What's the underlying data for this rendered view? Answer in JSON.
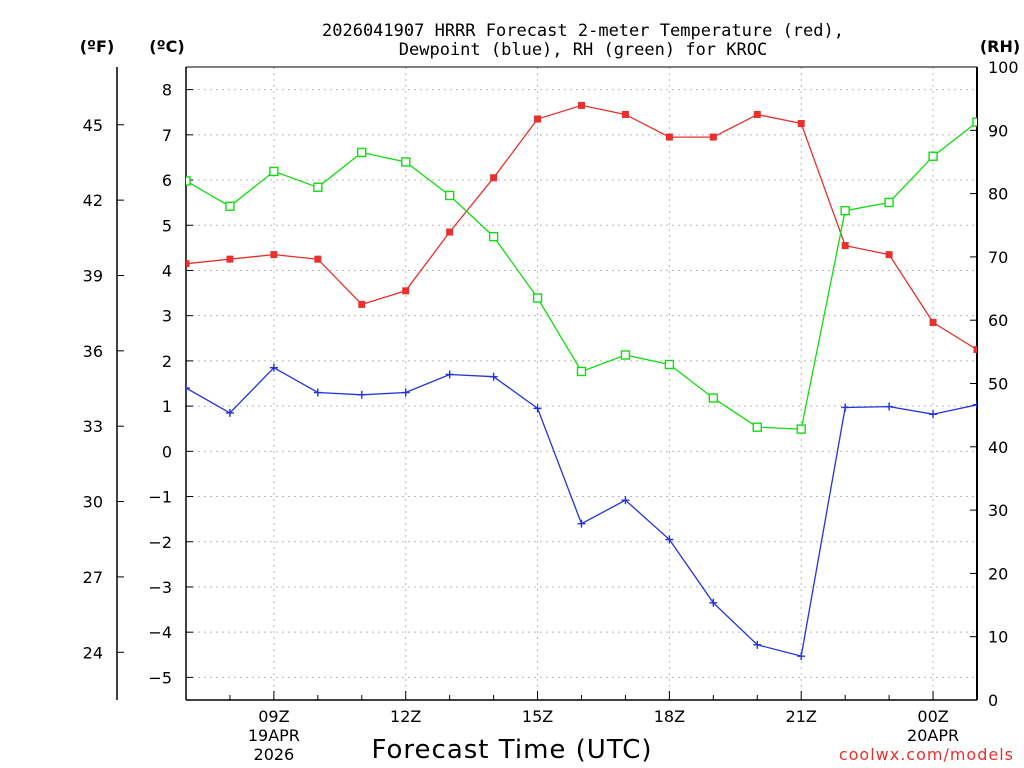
{
  "title_line1": "2026041907 HRRR Forecast 2-meter Temperature (red),",
  "title_line2": "Dewpoint (blue), RH (green) for KROC",
  "units": {
    "fahrenheit": "(ºF)",
    "celsius": "(ºC)",
    "rh": "(RH)"
  },
  "xaxis_title": "Forecast Time (UTC)",
  "credit": "coolwx.com/models",
  "colors": {
    "temperature": "#e8302c",
    "dewpoint": "#2233dd",
    "rh": "#11dd11"
  },
  "chart_data": {
    "type": "line",
    "title": "2026041907 HRRR Forecast 2-meter Temperature (red), Dewpoint (blue), RH (green) for KROC",
    "xlabel": "Forecast Time (UTC)",
    "x_hours": [
      7,
      8,
      9,
      10,
      11,
      12,
      13,
      14,
      15,
      16,
      17,
      18,
      19,
      20,
      21,
      22,
      23,
      24,
      25
    ],
    "xlim": [
      7,
      25
    ],
    "x_tick_hours": [
      9,
      12,
      15,
      18,
      21,
      24
    ],
    "x_tick_labels": [
      [
        "09Z",
        "19APR",
        "2026"
      ],
      [
        "12Z"
      ],
      [
        "15Z"
      ],
      [
        "18Z"
      ],
      [
        "21Z"
      ],
      [
        "00Z",
        "20APR"
      ]
    ],
    "y_celsius_lim": [
      -5.5,
      8.5
    ],
    "y_celsius_ticks": [
      8,
      7,
      6,
      5,
      4,
      3,
      2,
      1,
      0,
      -1,
      -2,
      -3,
      -4,
      -5
    ],
    "y_fahrenheit_ticks": [
      45,
      42,
      39,
      36,
      33,
      30,
      27,
      24
    ],
    "y_rh_lim": [
      0,
      100
    ],
    "y_rh_ticks": [
      100,
      90,
      80,
      70,
      60,
      50,
      40,
      30,
      20,
      10,
      0
    ],
    "series": [
      {
        "name": "Temperature",
        "axis": "celsius",
        "marker": "filled-square",
        "values": [
          4.15,
          4.25,
          4.35,
          4.25,
          3.25,
          3.55,
          4.85,
          6.05,
          7.35,
          7.65,
          7.45,
          6.95,
          6.95,
          7.45,
          7.25,
          4.55,
          4.35,
          2.85,
          2.25
        ]
      },
      {
        "name": "Dewpoint",
        "axis": "celsius",
        "marker": "plus",
        "values": [
          1.4,
          0.85,
          1.85,
          1.3,
          1.25,
          1.3,
          1.7,
          1.65,
          0.95,
          -1.6,
          -1.08,
          -1.95,
          -3.35,
          -4.28,
          -4.53,
          0.97,
          0.99,
          0.82,
          1.03
        ]
      },
      {
        "name": "RH",
        "axis": "rh",
        "marker": "open-square",
        "values": [
          82,
          78,
          83.5,
          81,
          86.5,
          85,
          79.7,
          73.2,
          63.5,
          51.9,
          54.5,
          53,
          47.7,
          43.1,
          42.8,
          77.3,
          78.6,
          85.9,
          91.3
        ]
      }
    ]
  }
}
